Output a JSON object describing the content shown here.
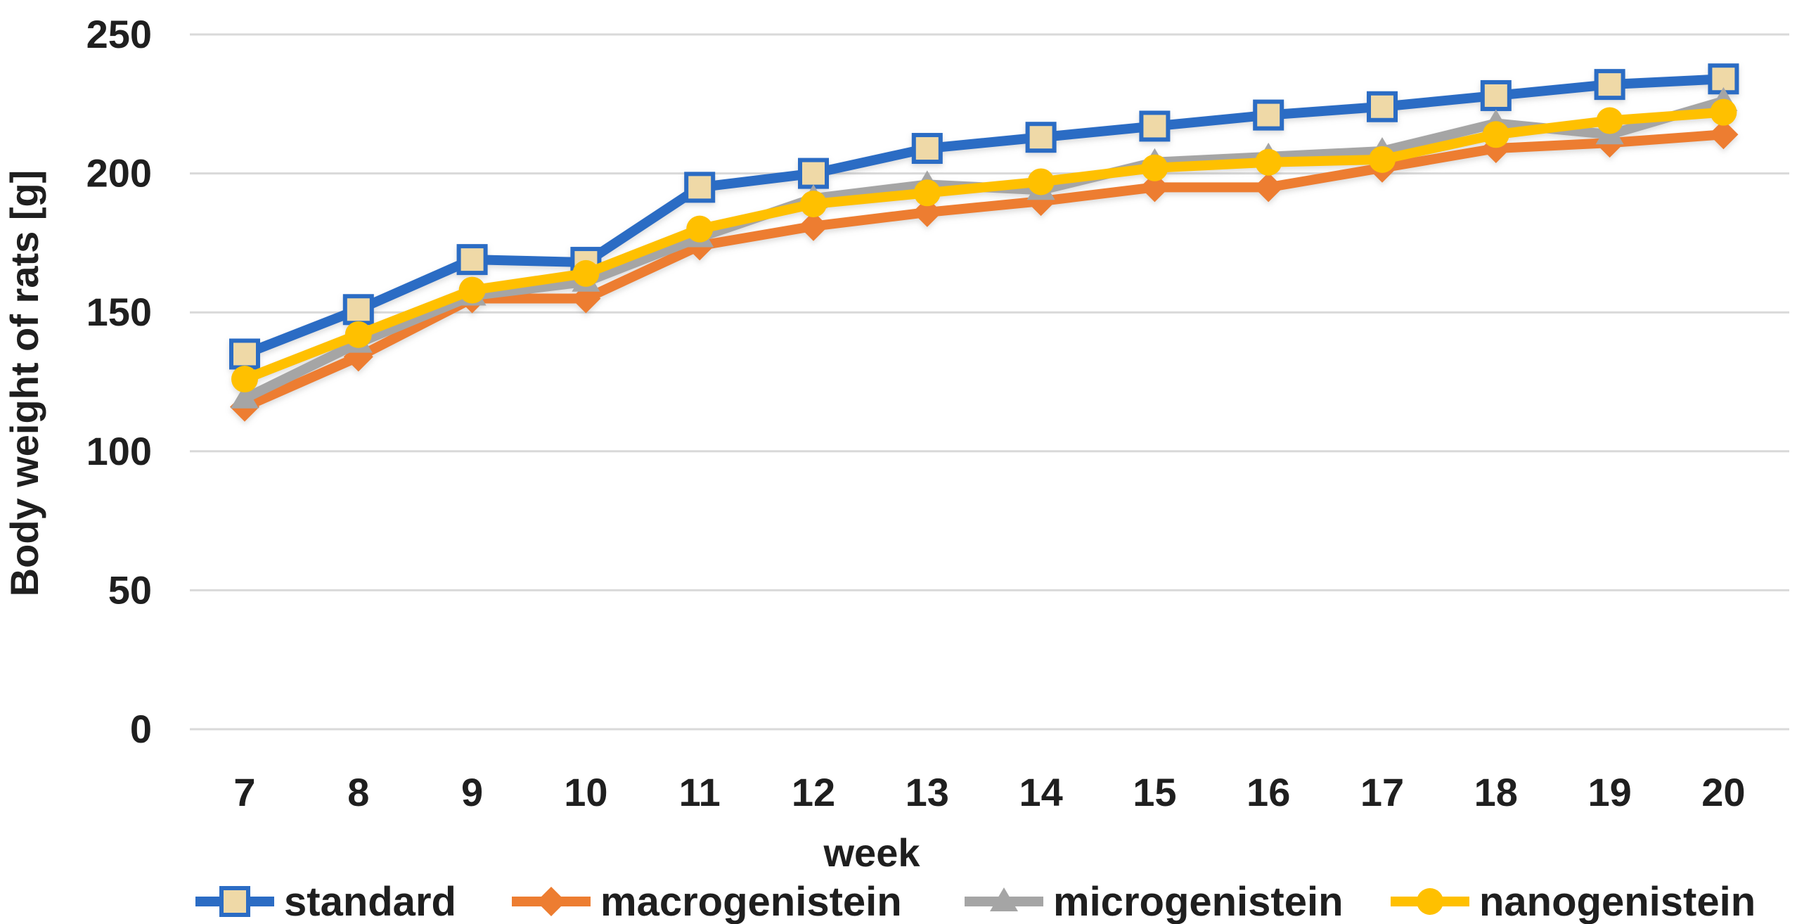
{
  "chart_data": {
    "type": "line",
    "title": "",
    "xlabel": "week",
    "ylabel": "Body weight of rats [g]",
    "x": [
      7,
      8,
      9,
      10,
      11,
      12,
      13,
      14,
      15,
      16,
      17,
      18,
      19,
      20
    ],
    "ylim": [
      0,
      250
    ],
    "yticks": [
      0,
      50,
      100,
      150,
      200,
      250
    ],
    "grid": "horizontal",
    "grid_color": "#d9d9d9",
    "text_color": "#1f1f1f",
    "background": "#ffffff",
    "legend_position": "bottom",
    "series": [
      {
        "name": "standard",
        "color": "#2b6cc4",
        "marker": "square",
        "marker_fill": "#efd9a7",
        "marker_stroke": "#2b6cc4",
        "values": [
          135,
          151,
          169,
          168,
          195,
          200,
          209,
          213,
          217,
          221,
          224,
          228,
          232,
          234
        ]
      },
      {
        "name": "macrogenistein",
        "color": "#ed7d31",
        "marker": "diamond",
        "marker_fill": "#ed7d31",
        "marker_stroke": "#ed7d31",
        "values": [
          116,
          134,
          155,
          155,
          174,
          181,
          186,
          190,
          195,
          195,
          202,
          209,
          211,
          214
        ]
      },
      {
        "name": "microgenistein",
        "color": "#a5a5a5",
        "marker": "triangle",
        "marker_fill": "#a5a5a5",
        "marker_stroke": "#a5a5a5",
        "values": [
          119,
          139,
          156,
          161,
          177,
          191,
          196,
          194,
          204,
          206,
          208,
          218,
          214,
          226
        ]
      },
      {
        "name": "nanogenistein",
        "color": "#ffc000",
        "marker": "circle",
        "marker_fill": "#ffc000",
        "marker_stroke": "#ffc000",
        "values": [
          126,
          142,
          158,
          164,
          180,
          189,
          193,
          197,
          202,
          204,
          205,
          214,
          219,
          222
        ]
      }
    ]
  }
}
